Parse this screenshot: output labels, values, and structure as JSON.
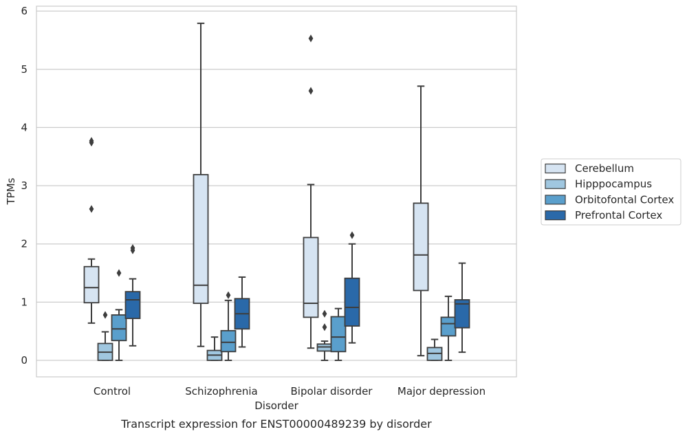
{
  "chart_data": {
    "type": "box",
    "title": "",
    "caption": "Transcript expression for ENST00000489239 by disorder",
    "xlabel": "Disorder",
    "ylabel": "TPMs",
    "ylim": [
      -0.28,
      6.1
    ],
    "yticks": [
      0,
      1,
      2,
      3,
      4,
      5,
      6
    ],
    "grid": true,
    "legend_position": "right",
    "categories": [
      "Control",
      "Schizophrenia",
      "Bipolar disorder",
      "Major depression"
    ],
    "series": [
      {
        "name": "Cerebellum",
        "color": "#d6e4f2",
        "boxes": [
          {
            "whisker_low": 0.64,
            "q1": 0.99,
            "median": 1.25,
            "q3": 1.61,
            "whisker_high": 1.74,
            "outliers": [
              3.74,
              3.77,
              2.6
            ]
          },
          {
            "whisker_low": 0.24,
            "q1": 0.98,
            "median": 1.29,
            "q3": 3.19,
            "whisker_high": 5.79,
            "outliers": []
          },
          {
            "whisker_low": 0.21,
            "q1": 0.74,
            "median": 0.98,
            "q3": 2.11,
            "whisker_high": 3.02,
            "outliers": [
              5.53,
              4.63
            ]
          },
          {
            "whisker_low": 0.08,
            "q1": 1.2,
            "median": 1.81,
            "q3": 2.7,
            "whisker_high": 4.71,
            "outliers": []
          }
        ]
      },
      {
        "name": "Hipppocampus",
        "color": "#a0c7e0",
        "boxes": [
          {
            "whisker_low": 0.0,
            "q1": 0.0,
            "median": 0.14,
            "q3": 0.29,
            "whisker_high": 0.49,
            "outliers": [
              0.78
            ]
          },
          {
            "whisker_low": 0.0,
            "q1": 0.0,
            "median": 0.09,
            "q3": 0.17,
            "whisker_high": 0.4,
            "outliers": []
          },
          {
            "whisker_low": 0.0,
            "q1": 0.16,
            "median": 0.23,
            "q3": 0.28,
            "whisker_high": 0.33,
            "outliers": [
              0.8,
              0.57
            ]
          },
          {
            "whisker_low": 0.0,
            "q1": 0.0,
            "median": 0.12,
            "q3": 0.22,
            "whisker_high": 0.36,
            "outliers": []
          }
        ]
      },
      {
        "name": "Orbitofontal Cortex",
        "color": "#5a9fcc",
        "boxes": [
          {
            "whisker_low": 0.0,
            "q1": 0.34,
            "median": 0.54,
            "q3": 0.78,
            "whisker_high": 0.87,
            "outliers": [
              1.5
            ]
          },
          {
            "whisker_low": 0.0,
            "q1": 0.15,
            "median": 0.31,
            "q3": 0.51,
            "whisker_high": 1.03,
            "outliers": [
              1.12
            ]
          },
          {
            "whisker_low": 0.0,
            "q1": 0.15,
            "median": 0.4,
            "q3": 0.75,
            "whisker_high": 0.89,
            "outliers": []
          },
          {
            "whisker_low": 0.0,
            "q1": 0.42,
            "median": 0.63,
            "q3": 0.74,
            "whisker_high": 1.1,
            "outliers": []
          }
        ]
      },
      {
        "name": "Prefrontal Cortex",
        "color": "#2a69a9",
        "boxes": [
          {
            "whisker_low": 0.25,
            "q1": 0.72,
            "median": 1.04,
            "q3": 1.18,
            "whisker_high": 1.4,
            "outliers": [
              1.89,
              1.93
            ]
          },
          {
            "whisker_low": 0.23,
            "q1": 0.54,
            "median": 0.8,
            "q3": 1.06,
            "whisker_high": 1.43,
            "outliers": []
          },
          {
            "whisker_low": 0.3,
            "q1": 0.59,
            "median": 0.91,
            "q3": 1.41,
            "whisker_high": 2.0,
            "outliers": [
              2.15
            ]
          },
          {
            "whisker_low": 0.14,
            "q1": 0.56,
            "median": 0.97,
            "q3": 1.04,
            "whisker_high": 1.67,
            "outliers": []
          }
        ]
      }
    ]
  }
}
